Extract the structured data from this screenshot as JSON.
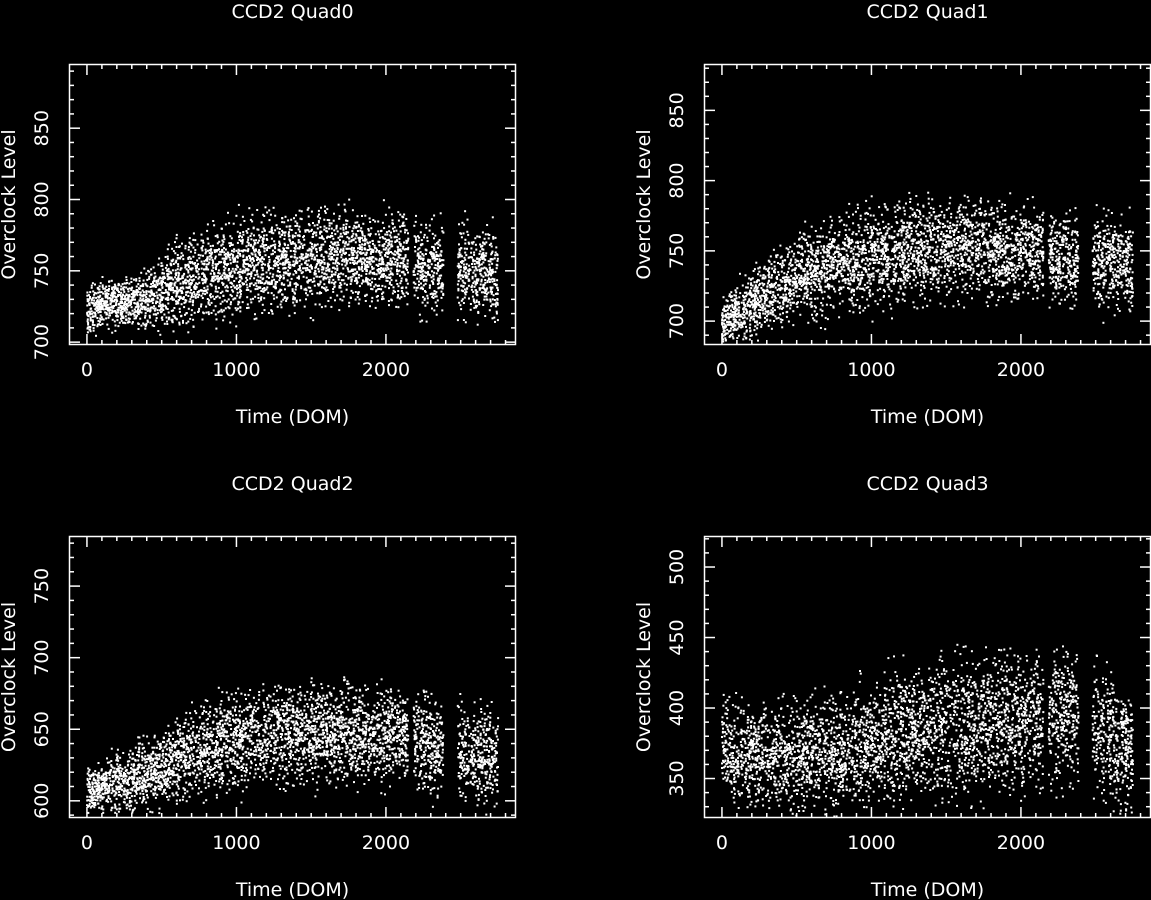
{
  "chart_data": [
    {
      "type": "scatter",
      "title": "CCD2 Quad0",
      "xlabel": "Time (DOM)",
      "ylabel": "Overclock Level",
      "xlim": [
        -120,
        2870
      ],
      "ylim": [
        698,
        895
      ],
      "xticks": [
        0,
        1000,
        2000
      ],
      "yticks": [
        700,
        750,
        800,
        850
      ],
      "grid": false,
      "point_color": "#ffffff",
      "trend": {
        "x": [
          0,
          100,
          200,
          300,
          400,
          500,
          600,
          800,
          1000,
          1200,
          1400,
          1600,
          1800,
          2000,
          2150,
          2300,
          2600,
          2750
        ],
        "center": [
          722,
          726,
          728,
          727,
          729,
          734,
          740,
          748,
          752,
          756,
          757,
          759,
          759,
          758,
          757,
          752,
          748,
          745
        ],
        "spread": [
          12,
          12,
          12,
          13,
          15,
          18,
          22,
          24,
          25,
          25,
          25,
          25,
          24,
          24,
          24,
          25,
          24,
          25
        ],
        "lo": 700,
        "hi": 802
      }
    },
    {
      "type": "scatter",
      "title": "CCD2 Quad1",
      "xlabel": "Time (DOM)",
      "ylabel": "Overclock Level",
      "xlim": [
        -120,
        2870
      ],
      "ylim": [
        683,
        883
      ],
      "xticks": [
        0,
        1000,
        2000
      ],
      "yticks": [
        700,
        750,
        800,
        850
      ],
      "grid": false,
      "point_color": "#ffffff",
      "trend": {
        "x": [
          0,
          100,
          200,
          300,
          400,
          500,
          600,
          800,
          1000,
          1200,
          1400,
          1600,
          1800,
          2000,
          2150,
          2300,
          2600,
          2750
        ],
        "center": [
          700,
          705,
          712,
          720,
          726,
          731,
          735,
          741,
          745,
          749,
          751,
          753,
          751,
          750,
          748,
          745,
          742,
          739
        ],
        "spread": [
          14,
          15,
          17,
          19,
          21,
          22,
          24,
          25,
          26,
          27,
          27,
          27,
          26,
          25,
          26,
          26,
          25,
          26
        ],
        "lo": 685,
        "hi": 792
      }
    },
    {
      "type": "scatter",
      "title": "CCD2 Quad2",
      "xlabel": "Time (DOM)",
      "ylabel": "Overclock Level",
      "xlim": [
        -120,
        2870
      ],
      "ylim": [
        588,
        785
      ],
      "xticks": [
        0,
        1000,
        2000
      ],
      "yticks": [
        600,
        650,
        700,
        750
      ],
      "grid": false,
      "point_color": "#ffffff",
      "trend": {
        "x": [
          0,
          100,
          200,
          300,
          400,
          500,
          600,
          800,
          1000,
          1200,
          1400,
          1600,
          1800,
          2000,
          2150,
          2300,
          2600,
          2750
        ],
        "center": [
          605,
          609,
          613,
          616,
          618,
          622,
          628,
          637,
          642,
          645,
          647,
          648,
          647,
          645,
          643,
          638,
          632,
          628
        ],
        "spread": [
          12,
          13,
          15,
          17,
          18,
          20,
          22,
          24,
          25,
          25,
          26,
          26,
          25,
          25,
          25,
          26,
          25,
          25
        ],
        "lo": 589,
        "hi": 693
      }
    },
    {
      "type": "scatter",
      "title": "CCD2 Quad3",
      "xlabel": "Time (DOM)",
      "ylabel": "Overclock Level",
      "xlim": [
        -120,
        2870
      ],
      "ylim": [
        322,
        522
      ],
      "xticks": [
        0,
        1000,
        2000
      ],
      "yticks": [
        350,
        400,
        450,
        500
      ],
      "grid": false,
      "point_color": "#ffffff",
      "trend": {
        "x": [
          0,
          100,
          200,
          300,
          400,
          500,
          600,
          800,
          1000,
          1200,
          1400,
          1600,
          1800,
          2000,
          2150,
          2300,
          2600,
          2750
        ],
        "center": [
          368,
          366,
          365,
          366,
          366,
          367,
          368,
          369,
          373,
          380,
          385,
          389,
          390,
          390,
          392,
          395,
          378,
          372
        ],
        "spread": [
          26,
          27,
          28,
          28,
          28,
          29,
          30,
          31,
          32,
          34,
          36,
          37,
          37,
          37,
          37,
          38,
          35,
          34
        ],
        "lo": 323,
        "hi": 446
      }
    }
  ]
}
